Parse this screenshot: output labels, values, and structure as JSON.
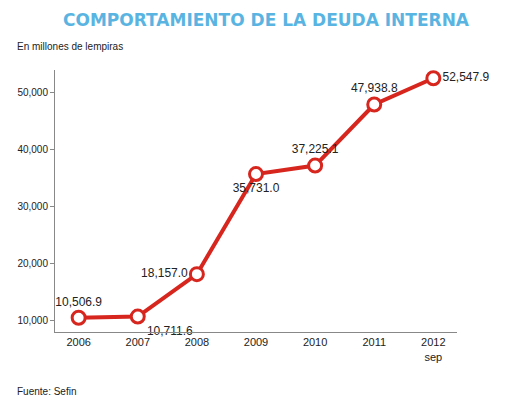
{
  "chart_data": {
    "type": "line",
    "title": "COMPORTAMIENTO DE LA DEUDA INTERNA",
    "subtitle": "En millones de lempiras",
    "annotations": [
      "Fuente: Sefin"
    ],
    "categories": [
      "2006",
      "2007",
      "2008",
      "2009",
      "2010",
      "2011",
      "2012 sep"
    ],
    "values": [
      10506.9,
      10711.6,
      18157.0,
      35731.0,
      37225.1,
      47938.8,
      52547.9
    ],
    "value_labels": [
      "10,506.9",
      "10,711.6",
      "18,157.0",
      "35,731.0",
      "37,225.1",
      "47,938.8",
      "52,547.9"
    ],
    "data_labels": true,
    "color": "#d7261e",
    "marker": "circle",
    "line_style": "solid",
    "ylim": [
      8000,
      54000
    ],
    "yticks": [
      {
        "value": 10000,
        "label": "10,000"
      },
      {
        "value": 20000,
        "label": "20,000"
      },
      {
        "value": 30000,
        "label": "30,000"
      },
      {
        "value": 40000,
        "label": "40,000"
      },
      {
        "value": 50000,
        "label": "50,000"
      }
    ],
    "grid": false
  }
}
